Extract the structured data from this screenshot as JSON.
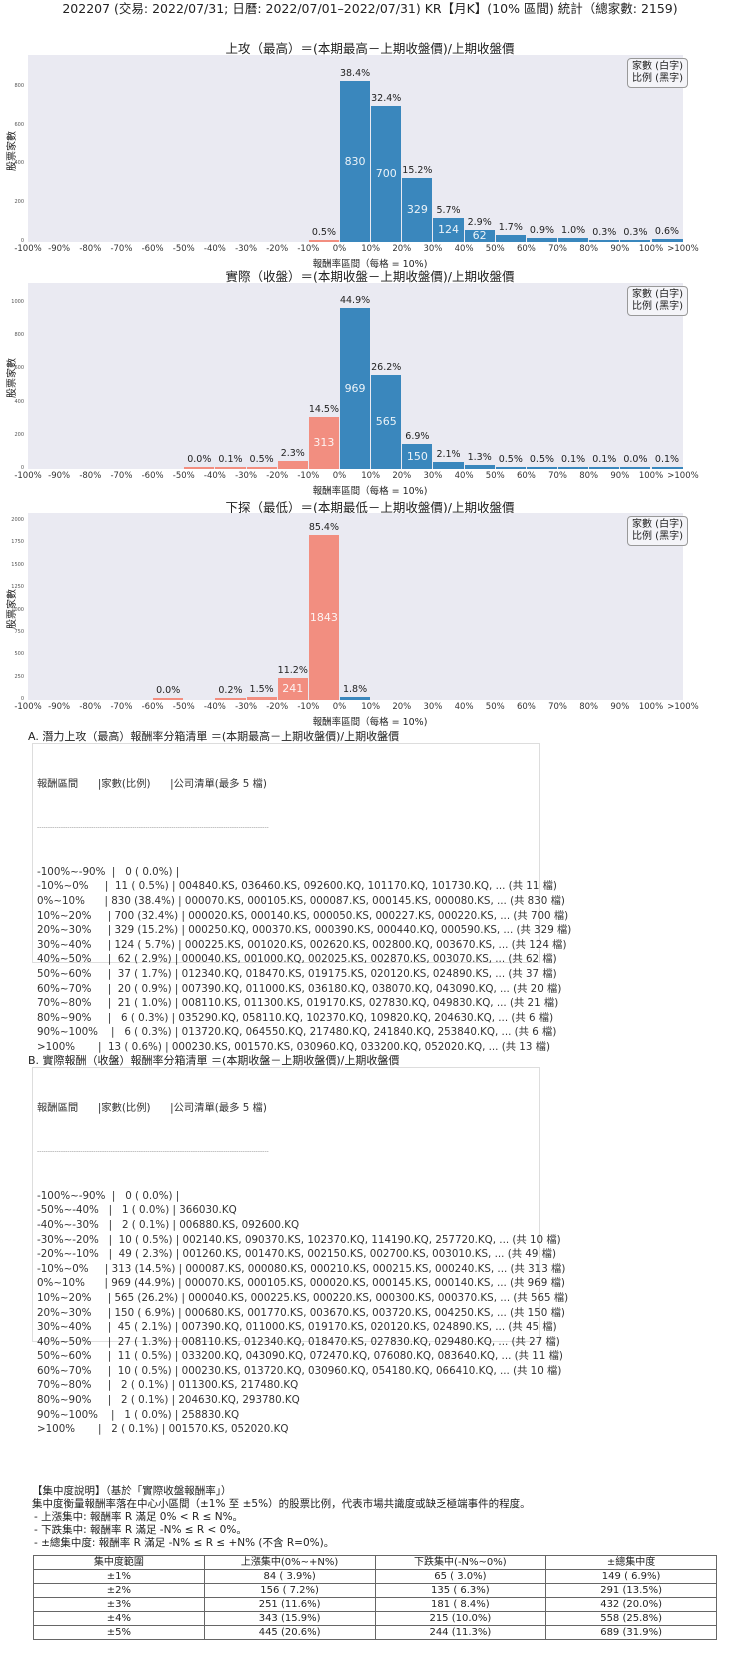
{
  "header": {
    "title": "202207 (交易: 2022/07/31; 日曆: 2022/07/01–2022/07/31) KR【月K】(10% 區間) 統計（總家數: 2159)"
  },
  "colors": {
    "up": "#3a87bd",
    "down": "#f28e80",
    "plot_bg": "#eaeaf2"
  },
  "legend": {
    "line1": "家數 (白字)",
    "line2": "比例 (黑字)"
  },
  "axis": {
    "ylabel": "股票家數",
    "xlabel": "報酬率區間（每格 = 10%)",
    "xticks": [
      "-100%",
      "-90%",
      "-80%",
      "-70%",
      "-60%",
      "-50%",
      "-40%",
      "-30%",
      "-20%",
      "-10%",
      "0%",
      "10%",
      "20%",
      "30%",
      "40%",
      "50%",
      "60%",
      "70%",
      "80%",
      "90%",
      "100%",
      ">100%"
    ]
  },
  "chart_data": [
    {
      "type": "bar",
      "title": "上攻（最高）＝(本期最高－上期收盤價)/上期收盤價",
      "xlabel": "報酬率區間（每格 = 10%)",
      "ylabel": "股票家數",
      "ylim": [
        0,
        965
      ],
      "yticks": [
        0,
        200,
        400,
        600,
        800
      ],
      "categories": [
        "-100%~-90%",
        "-90%~-80%",
        "-80%~-70%",
        "-70%~-60%",
        "-60%~-50%",
        "-50%~-40%",
        "-40%~-30%",
        "-30%~-20%",
        "-20%~-10%",
        "-10%~0%",
        "0%~10%",
        "10%~20%",
        "20%~30%",
        "30%~40%",
        "40%~50%",
        "50%~60%",
        "60%~70%",
        "70%~80%",
        "80%~90%",
        "90%~100%",
        ">100%"
      ],
      "values": [
        0,
        0,
        0,
        0,
        0,
        0,
        0,
        0,
        0,
        11,
        830,
        700,
        329,
        124,
        62,
        37,
        20,
        21,
        6,
        6,
        13
      ],
      "pct_labels": [
        "",
        "",
        "",
        "",
        "",
        "",
        "",
        "",
        "",
        "0.5%",
        "38.4%",
        "32.4%",
        "15.2%",
        "5.7%",
        "2.9%",
        "1.7%",
        "0.9%",
        "1.0%",
        "0.3%",
        "0.3%",
        "0.6%"
      ],
      "legend": [
        "家數 (白字)",
        "比例 (黑字)"
      ],
      "legend_position": "upper right",
      "grid": false
    },
    {
      "type": "bar",
      "title": "實際（收盤）＝(本期收盤－上期收盤價)/上期收盤價",
      "xlabel": "報酬率區間（每格 = 10%)",
      "ylabel": "股票家數",
      "ylim": [
        0,
        1120
      ],
      "yticks": [
        0,
        200,
        400,
        600,
        800,
        1000
      ],
      "categories": [
        "-100%~-90%",
        "-90%~-80%",
        "-80%~-70%",
        "-70%~-60%",
        "-60%~-50%",
        "-50%~-40%",
        "-40%~-30%",
        "-30%~-20%",
        "-20%~-10%",
        "-10%~0%",
        "0%~10%",
        "10%~20%",
        "20%~30%",
        "30%~40%",
        "40%~50%",
        "50%~60%",
        "60%~70%",
        "70%~80%",
        "80%~90%",
        "90%~100%",
        ">100%"
      ],
      "values": [
        0,
        0,
        0,
        0,
        0,
        1,
        2,
        10,
        49,
        313,
        969,
        565,
        150,
        45,
        27,
        11,
        10,
        2,
        2,
        1,
        2
      ],
      "pct_labels": [
        "",
        "",
        "",
        "",
        "",
        "0.0%",
        "0.1%",
        "0.5%",
        "2.3%",
        "14.5%",
        "44.9%",
        "26.2%",
        "6.9%",
        "2.1%",
        "1.3%",
        "0.5%",
        "0.5%",
        "0.1%",
        "0.1%",
        "0.0%",
        "0.1%"
      ],
      "legend": [
        "家數 (白字)",
        "比例 (黑字)"
      ],
      "legend_position": "upper right",
      "grid": false
    },
    {
      "type": "bar",
      "title": "下探（最低）＝(本期最低－上期收盤價)/上期收盤價",
      "xlabel": "報酬率區間（每格 = 10%)",
      "ylabel": "股票家數",
      "ylim": [
        0,
        2090
      ],
      "yticks": [
        0,
        250,
        500,
        750,
        1000,
        1250,
        1500,
        1750,
        2000
      ],
      "categories": [
        "-100%~-90%",
        "-90%~-80%",
        "-80%~-70%",
        "-70%~-60%",
        "-60%~-50%",
        "-50%~-40%",
        "-40%~-30%",
        "-30%~-20%",
        "-20%~-10%",
        "-10%~0%",
        "0%~10%",
        "10%~20%",
        "20%~30%",
        "30%~40%",
        "40%~50%",
        "50%~60%",
        "60%~70%",
        "70%~80%",
        "80%~90%",
        "90%~100%",
        ">100%"
      ],
      "values": [
        0,
        0,
        0,
        0,
        1,
        0,
        5,
        32,
        241,
        1843,
        38,
        0,
        0,
        0,
        0,
        0,
        0,
        0,
        0,
        0,
        0
      ],
      "pct_labels": [
        "",
        "",
        "",
        "",
        "0.0%",
        "",
        "0.2%",
        "1.5%",
        "11.2%",
        "85.4%",
        "1.8%",
        "",
        "",
        "",
        "",
        "",
        "",
        "",
        "",
        "",
        ""
      ],
      "legend": [
        "家數 (白字)",
        "比例 (黑字)"
      ],
      "legend_position": "upper right",
      "grid": false
    }
  ],
  "list_a": {
    "title": "A. 潛力上攻（最高）報酬率分箱清單 ＝(本期最高－上期收盤價)/上期收盤價",
    "header": "報酬區間      |家數(比例)      |公司清單(最多 5 檔)",
    "separator": "-----------------------------------------------------------------------------------------------------------",
    "rows": [
      "-100%~-90%  |   0 ( 0.0%) |",
      "-10%~0%     |  11 ( 0.5%) | 004840.KS, 036460.KS, 092600.KQ, 101170.KQ, 101730.KQ, ... (共 11 檔)",
      "0%~10%      | 830 (38.4%) | 000070.KS, 000105.KS, 000087.KS, 000145.KS, 000080.KS, ... (共 830 檔)",
      "10%~20%     | 700 (32.4%) | 000020.KS, 000140.KS, 000050.KS, 000227.KS, 000220.KS, ... (共 700 檔)",
      "20%~30%     | 329 (15.2%) | 000250.KQ, 000370.KS, 000390.KS, 000440.KQ, 000590.KS, ... (共 329 檔)",
      "30%~40%     | 124 ( 5.7%) | 000225.KS, 001020.KS, 002620.KS, 002800.KQ, 003670.KS, ... (共 124 檔)",
      "40%~50%     |  62 ( 2.9%) | 000040.KS, 001000.KQ, 002025.KS, 002870.KS, 003070.KS, ... (共 62 檔)",
      "50%~60%     |  37 ( 1.7%) | 012340.KQ, 018470.KS, 019175.KS, 020120.KS, 024890.KS, ... (共 37 檔)",
      "60%~70%     |  20 ( 0.9%) | 007390.KQ, 011000.KS, 036180.KQ, 038070.KQ, 043090.KQ, ... (共 20 檔)",
      "70%~80%     |  21 ( 1.0%) | 008110.KS, 011300.KS, 019170.KS, 027830.KQ, 049830.KQ, ... (共 21 檔)",
      "80%~90%     |   6 ( 0.3%) | 035290.KQ, 058110.KQ, 102370.KQ, 109820.KQ, 204630.KQ, ... (共 6 檔)",
      "90%~100%    |   6 ( 0.3%) | 013720.KQ, 064550.KQ, 217480.KQ, 241840.KQ, 253840.KQ, ... (共 6 檔)",
      ">100%       |  13 ( 0.6%) | 000230.KS, 001570.KS, 030960.KQ, 033200.KQ, 052020.KQ, ... (共 13 檔)"
    ]
  },
  "list_b": {
    "title": "B. 實際報酬（收盤）報酬率分箱清單 ＝(本期收盤－上期收盤價)/上期收盤價",
    "header": "報酬區間      |家數(比例)      |公司清單(最多 5 檔)",
    "separator": "-----------------------------------------------------------------------------------------------------------",
    "rows": [
      "-100%~-90%  |   0 ( 0.0%) |",
      "-50%~-40%   |   1 ( 0.0%) | 366030.KQ",
      "-40%~-30%   |   2 ( 0.1%) | 006880.KS, 092600.KQ",
      "-30%~-20%   |  10 ( 0.5%) | 002140.KS, 090370.KS, 102370.KQ, 114190.KQ, 257720.KQ, ... (共 10 檔)",
      "-20%~-10%   |  49 ( 2.3%) | 001260.KS, 001470.KS, 002150.KS, 002700.KS, 003010.KS, ... (共 49 檔)",
      "-10%~0%     | 313 (14.5%) | 000087.KS, 000080.KS, 000210.KS, 000215.KS, 000240.KS, ... (共 313 檔)",
      "0%~10%      | 969 (44.9%) | 000070.KS, 000105.KS, 000020.KS, 000145.KS, 000140.KS, ... (共 969 檔)",
      "10%~20%     | 565 (26.2%) | 000040.KS, 000225.KS, 000220.KS, 000300.KS, 000370.KS, ... (共 565 檔)",
      "20%~30%     | 150 ( 6.9%) | 000680.KS, 001770.KS, 003670.KS, 003720.KS, 004250.KS, ... (共 150 檔)",
      "30%~40%     |  45 ( 2.1%) | 007390.KQ, 011000.KS, 019170.KS, 020120.KS, 024890.KS, ... (共 45 檔)",
      "40%~50%     |  27 ( 1.3%) | 008110.KS, 012340.KQ, 018470.KS, 027830.KQ, 029480.KQ, ... (共 27 檔)",
      "50%~60%     |  11 ( 0.5%) | 033200.KQ, 043090.KQ, 072470.KQ, 076080.KQ, 083640.KQ, ... (共 11 檔)",
      "60%~70%     |  10 ( 0.5%) | 000230.KS, 013720.KQ, 030960.KQ, 054180.KQ, 066410.KQ, ... (共 10 檔)",
      "70%~80%     |   2 ( 0.1%) | 011300.KS, 217480.KQ",
      "80%~90%     |   2 ( 0.1%) | 204630.KQ, 293780.KQ",
      "90%~100%    |   1 ( 0.0%) | 258830.KQ",
      ">100%       |   2 ( 0.1%) | 001570.KS, 052020.KQ"
    ]
  },
  "concentration": {
    "title": "【集中度說明】（基於「實際收盤報酬率」）",
    "desc": "集中度衡量報酬率落在中心小區間（±1% 至 ±5%）的股票比例，代表市場共識度或缺乏極端事件的程度。",
    "bullets": [
      "- 上漲集中: 報酬率 R 滿足 0% < R ≤ N%。",
      "- 下跌集中: 報酬率 R 滿足 -N% ≤ R < 0%。",
      "- ±總集中度: 報酬率 R 滿足 -N% ≤ R ≤ +N% (不含 R=0%)。"
    ],
    "columns": [
      "集中度範圍",
      "上漲集中(0%~+N%)",
      "下跌集中(-N%~0%)",
      "±總集中度"
    ],
    "rows": [
      [
        "±1%",
        "84 ( 3.9%)",
        "65 ( 3.0%)",
        "149 ( 6.9%)"
      ],
      [
        "±2%",
        "156 ( 7.2%)",
        "135 ( 6.3%)",
        "291 (13.5%)"
      ],
      [
        "±3%",
        "251 (11.6%)",
        "181 ( 8.4%)",
        "432 (20.0%)"
      ],
      [
        "±4%",
        "343 (15.9%)",
        "215 (10.0%)",
        "558 (25.8%)"
      ],
      [
        "±5%",
        "445 (20.6%)",
        "244 (11.3%)",
        "689 (31.9%)"
      ]
    ]
  }
}
